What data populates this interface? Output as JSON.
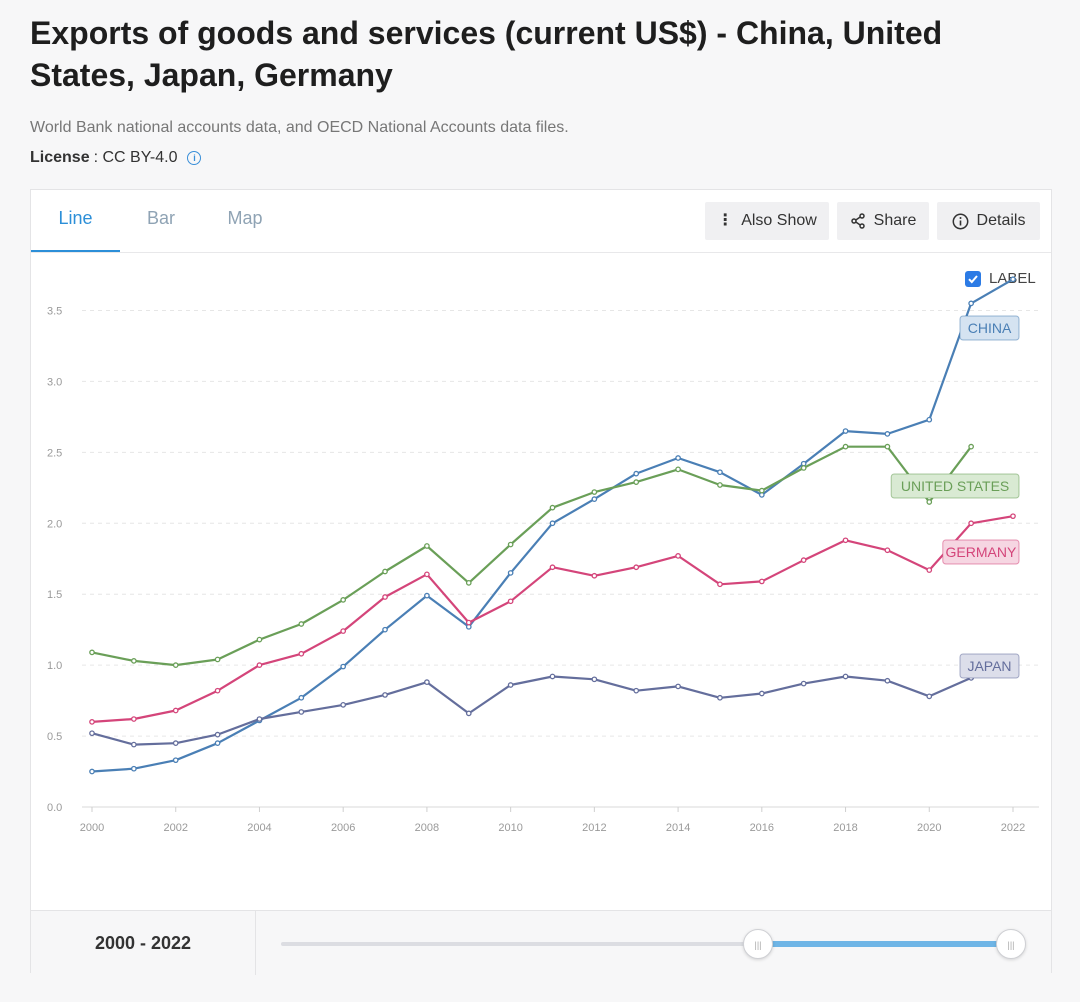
{
  "page": {
    "title": "Exports of goods and services (current US$) - China, United States, Japan, Germany",
    "source": "World Bank national accounts data, and OECD National Accounts data files.",
    "license_label": "License",
    "license_sep": " : ",
    "license_value": "CC BY-4.0"
  },
  "tabs": [
    {
      "label": "Line",
      "active": true
    },
    {
      "label": "Bar",
      "active": false
    },
    {
      "label": "Map",
      "active": false
    }
  ],
  "toolbar": {
    "also_show": "Also Show",
    "share": "Share",
    "details": "Details"
  },
  "label_toggle": {
    "text": "LABEL",
    "checked": true
  },
  "range": {
    "label": "2000 - 2022",
    "start": 2000,
    "end": 2022
  },
  "chart_data": {
    "type": "line",
    "title": "Exports of goods and services (current US$)",
    "xlabel": "",
    "ylabel": "",
    "x": [
      2000,
      2001,
      2002,
      2003,
      2004,
      2005,
      2006,
      2007,
      2008,
      2009,
      2010,
      2011,
      2012,
      2013,
      2014,
      2015,
      2016,
      2017,
      2018,
      2019,
      2020,
      2021,
      2022
    ],
    "xticks": [
      2000,
      2002,
      2004,
      2006,
      2008,
      2010,
      2012,
      2014,
      2016,
      2018,
      2020,
      2022
    ],
    "yticks": [
      "0.0",
      "0.5",
      "1.0",
      "1.5",
      "2.0",
      "2.5",
      "3.0",
      "3.5"
    ],
    "ylim": [
      0,
      3.75
    ],
    "xlim": [
      2000,
      2022
    ],
    "grid": true,
    "series": [
      {
        "name": "CHINA",
        "color": "#4a7fb5",
        "label_bg": "#d5e3f1",
        "values": [
          0.25,
          0.27,
          0.33,
          0.45,
          0.61,
          0.77,
          0.99,
          1.25,
          1.49,
          1.27,
          1.65,
          2.0,
          2.17,
          2.35,
          2.46,
          2.36,
          2.2,
          2.42,
          2.65,
          2.63,
          2.73,
          3.55,
          3.72
        ]
      },
      {
        "name": "UNITED STATES",
        "color": "#6a9f58",
        "label_bg": "#d9ead3",
        "values": [
          1.09,
          1.03,
          1.0,
          1.04,
          1.18,
          1.29,
          1.46,
          1.66,
          1.84,
          1.58,
          1.85,
          2.11,
          2.22,
          2.29,
          2.38,
          2.27,
          2.23,
          2.39,
          2.54,
          2.54,
          2.15,
          2.54,
          null
        ]
      },
      {
        "name": "GERMANY",
        "color": "#d4457a",
        "label_bg": "#f6d6e2",
        "values": [
          0.6,
          0.62,
          0.68,
          0.82,
          1.0,
          1.08,
          1.24,
          1.48,
          1.64,
          1.3,
          1.45,
          1.69,
          1.63,
          1.69,
          1.77,
          1.57,
          1.59,
          1.74,
          1.88,
          1.81,
          1.67,
          2.0,
          2.05
        ]
      },
      {
        "name": "JAPAN",
        "color": "#646e9c",
        "label_bg": "#dcdeea",
        "values": [
          0.52,
          0.44,
          0.45,
          0.51,
          0.62,
          0.67,
          0.72,
          0.79,
          0.88,
          0.66,
          0.86,
          0.92,
          0.9,
          0.82,
          0.85,
          0.77,
          0.8,
          0.87,
          0.92,
          0.89,
          0.78,
          0.91,
          null
        ]
      }
    ]
  }
}
